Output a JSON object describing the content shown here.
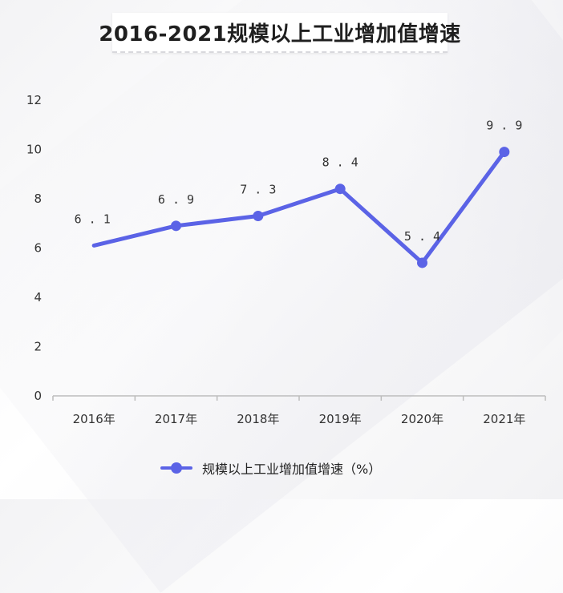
{
  "title": "2016-2021规模以上工业增加值增速",
  "colors": {
    "series": "#5b63e6",
    "axis": "#bdbdbd",
    "text": "#333333"
  },
  "legend": {
    "label": "规模以上工业增加值增速（%）",
    "icon": "line-with-dot-icon"
  },
  "chart_data": {
    "type": "line",
    "title": "2016-2021规模以上工业增加值增速",
    "categories": [
      "2016年",
      "2017年",
      "2018年",
      "2019年",
      "2020年",
      "2021年"
    ],
    "series": [
      {
        "name": "规模以上工业增加值增速（%）",
        "values": [
          6.1,
          6.9,
          7.3,
          8.4,
          5.4,
          9.9
        ]
      }
    ],
    "data_labels": [
      "6.1",
      "6.9",
      "7.3",
      "8.4",
      "5.4",
      "9.9"
    ],
    "y_ticks": [
      "0",
      "2",
      "4",
      "6",
      "8",
      "10",
      "12"
    ],
    "ylim": [
      0,
      12
    ],
    "grid": false,
    "legend_position": "bottom"
  }
}
